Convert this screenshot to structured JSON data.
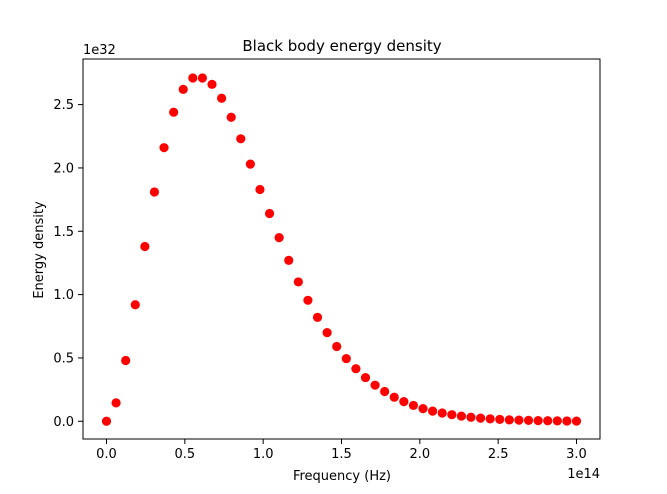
{
  "chart_data": {
    "type": "scatter",
    "title": "Black body energy density",
    "xlabel": "Frequency (Hz)",
    "ylabel": "Energy density",
    "x_offset_label": "1e14",
    "y_offset_label": "1e32",
    "xlim": [
      -0.15,
      3.15
    ],
    "ylim": [
      -0.14,
      2.86
    ],
    "x_ticks": [
      0.0,
      0.5,
      1.0,
      1.5,
      2.0,
      2.5,
      3.0
    ],
    "x_tick_labels": [
      "0.0",
      "0.5",
      "1.0",
      "1.5",
      "2.0",
      "2.5",
      "3.0"
    ],
    "y_ticks": [
      0.0,
      0.5,
      1.0,
      1.5,
      2.0,
      2.5
    ],
    "y_tick_labels": [
      "0.0",
      "0.5",
      "1.0",
      "1.5",
      "2.0",
      "2.5"
    ],
    "grid": false,
    "marker_color": "#ff0000",
    "series": [
      {
        "x": [
          0.0,
          0.0612,
          0.1224,
          0.1837,
          0.2449,
          0.3061,
          0.3673,
          0.4286,
          0.4898,
          0.551,
          0.6122,
          0.6735,
          0.7347,
          0.7959,
          0.8571,
          0.9184,
          0.9796,
          1.0408,
          1.102,
          1.1633,
          1.2245,
          1.2857,
          1.3469,
          1.4082,
          1.4694,
          1.5306,
          1.5918,
          1.6531,
          1.7143,
          1.7755,
          1.8367,
          1.898,
          1.9592,
          2.0204,
          2.0816,
          2.1429,
          2.2041,
          2.2653,
          2.3265,
          2.3878,
          2.449,
          2.5102,
          2.5714,
          2.6327,
          2.6939,
          2.7551,
          2.8163,
          2.8776,
          2.9388,
          3.0
        ],
        "y": [
          0.0,
          0.145,
          0.48,
          0.92,
          1.38,
          1.81,
          2.16,
          2.44,
          2.62,
          2.71,
          2.71,
          2.66,
          2.55,
          2.4,
          2.23,
          2.03,
          1.83,
          1.64,
          1.45,
          1.27,
          1.1,
          0.955,
          0.82,
          0.7,
          0.59,
          0.495,
          0.415,
          0.345,
          0.285,
          0.235,
          0.19,
          0.155,
          0.125,
          0.1,
          0.08,
          0.065,
          0.052,
          0.041,
          0.032,
          0.025,
          0.019,
          0.015,
          0.011,
          0.009,
          0.007,
          0.005,
          0.004,
          0.003,
          0.002,
          0.0015
        ]
      }
    ]
  }
}
